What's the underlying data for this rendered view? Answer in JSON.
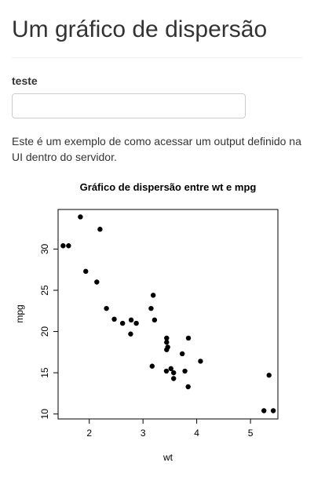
{
  "page": {
    "title": "Um gráfico de dispersão"
  },
  "input": {
    "label": "teste",
    "value": ""
  },
  "description": "Este é um exemplo de como acessar um output definido na UI dentro do servidor.",
  "chart_data": {
    "type": "scatter",
    "title": "Gráfico de dispersão entre wt e mpg",
    "xlabel": "wt",
    "ylabel": "mpg",
    "xlim": [
      1.42,
      5.51
    ],
    "ylim": [
      9.4,
      34.8
    ],
    "xticks": [
      2,
      3,
      4,
      5
    ],
    "yticks": [
      10,
      15,
      20,
      25,
      30
    ],
    "grid": false,
    "point_color": "#000000",
    "x": [
      2.62,
      2.875,
      2.32,
      3.215,
      3.44,
      3.46,
      3.57,
      3.19,
      3.15,
      3.44,
      3.44,
      4.07,
      3.73,
      3.78,
      5.25,
      5.424,
      5.345,
      2.2,
      1.615,
      1.835,
      2.465,
      3.52,
      3.435,
      3.84,
      3.845,
      1.935,
      2.14,
      1.513,
      3.17,
      2.77,
      3.57,
      2.78
    ],
    "y": [
      21.0,
      21.0,
      22.8,
      21.4,
      18.7,
      18.1,
      14.3,
      24.4,
      22.8,
      19.2,
      17.8,
      16.4,
      17.3,
      15.2,
      10.4,
      10.4,
      14.7,
      32.4,
      30.4,
      33.9,
      21.5,
      15.5,
      15.2,
      13.3,
      19.2,
      27.3,
      26.0,
      30.4,
      15.8,
      19.7,
      15.0,
      21.4
    ]
  }
}
